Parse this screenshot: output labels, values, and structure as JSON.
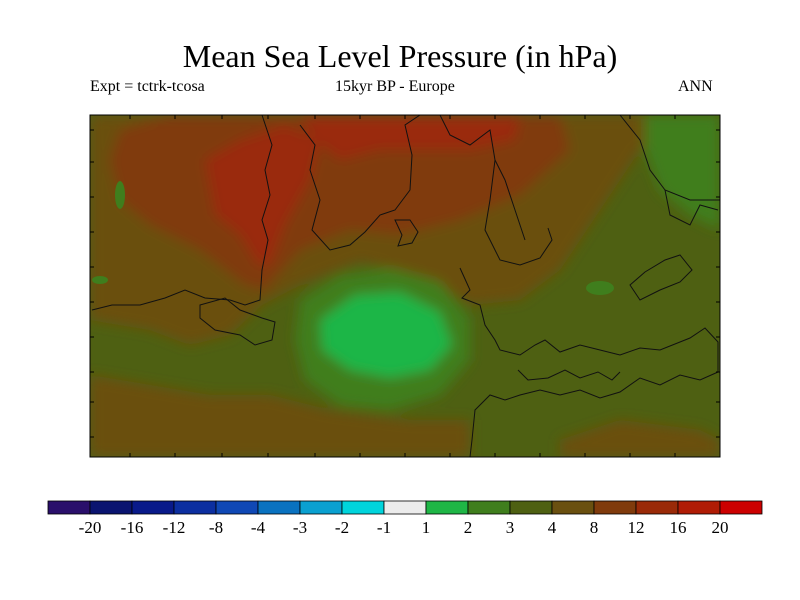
{
  "chart_data": {
    "type": "heatmap",
    "title": "Mean Sea Level Pressure (in hPa)",
    "subtitle_left": "Expt = tctrk-tcosa",
    "subtitle_center": "15kyr BP - Europe",
    "subtitle_right": "ANN",
    "colorbar": {
      "tick_labels": [
        "-20",
        "-16",
        "-12",
        "-8",
        "-4",
        "-3",
        "-2",
        "-1",
        "1",
        "2",
        "3",
        "4",
        "8",
        "12",
        "16",
        "20"
      ],
      "colors": [
        "#2a0f6b",
        "#0a1470",
        "#091a8a",
        "#0c2fa0",
        "#1048b5",
        "#0a72c0",
        "#0aa0d0",
        "#00d4dc",
        "#ececec",
        "#1fb646",
        "#3f7e1d",
        "#4e6012",
        "#6a5010",
        "#803b0c",
        "#9a2a08",
        "#b01c05",
        "#cc0000"
      ]
    },
    "field_levels": {
      "background": "#4e6012",
      "band_4_8": "#6a5010",
      "band_8_12": "#803b0c",
      "band_12_16": "#9a2a08",
      "band_2_3": "#3f7e1d",
      "band_1_2": "#1fb646"
    }
  }
}
